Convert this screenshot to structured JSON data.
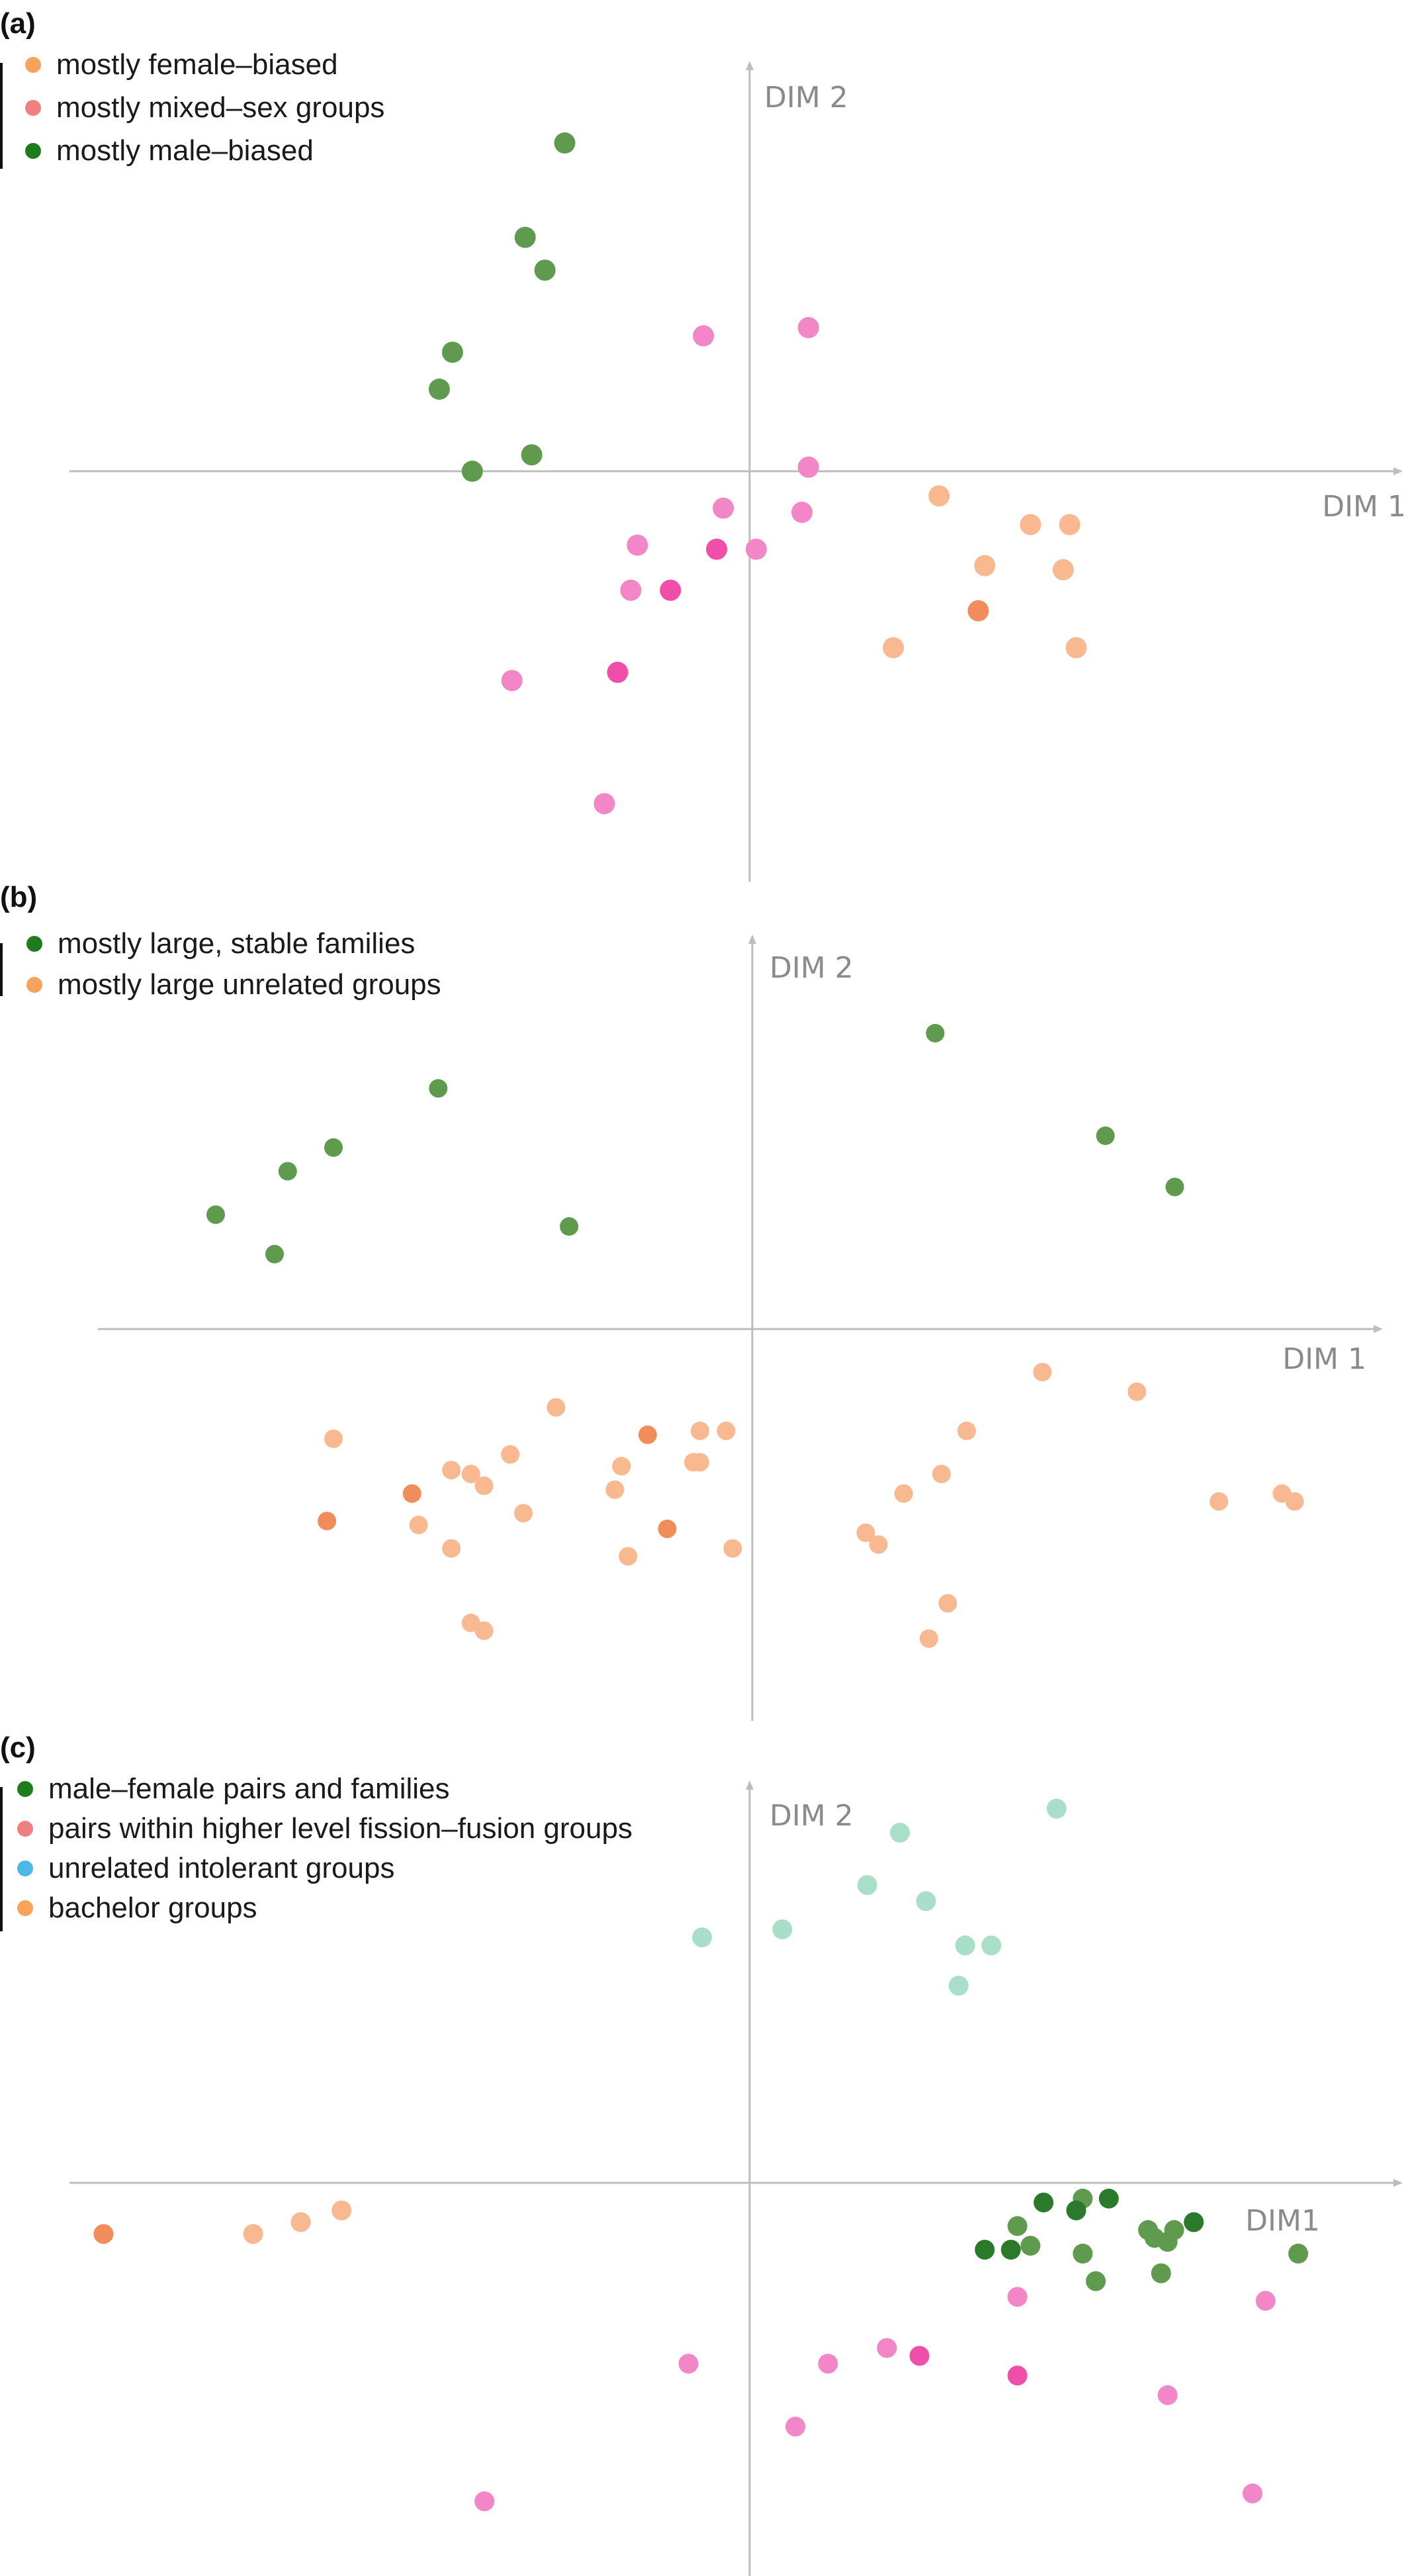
{
  "chart_data": [
    {
      "type": "scatter",
      "panel_label": "(a)",
      "xlabel": "DIM 1",
      "ylabel": "DIM 2",
      "legend_placement": "top-left",
      "grid": false,
      "xlim": [
        -1.03,
        1.0
      ],
      "ylim": [
        -1.0,
        1.0
      ],
      "legend": [
        {
          "label": "mostly female–biased",
          "color": "#f7a35c"
        },
        {
          "label": "mostly mixed–sex groups",
          "color": "#f08080"
        },
        {
          "label": "mostly male–biased",
          "color": "#1e7b1e"
        }
      ],
      "series": [
        {
          "color": "#5f9a4f",
          "points": [
            [
              -0.28,
              0.8
            ],
            [
              -0.34,
              0.57
            ],
            [
              -0.31,
              0.49
            ],
            [
              -0.45,
              0.29
            ],
            [
              -0.47,
              0.2
            ],
            [
              -0.33,
              0.04
            ],
            [
              -0.42,
              0.0
            ]
          ]
        },
        {
          "color": "#f386c7",
          "points": [
            [
              -0.07,
              0.33
            ],
            [
              0.09,
              0.35
            ],
            [
              0.09,
              0.01
            ],
            [
              -0.04,
              -0.09
            ],
            [
              0.08,
              -0.1
            ],
            [
              -0.17,
              -0.18
            ],
            [
              0.01,
              -0.19
            ],
            [
              -0.18,
              -0.29
            ],
            [
              -0.36,
              -0.51
            ],
            [
              -0.22,
              -0.81
            ]
          ]
        },
        {
          "color": "#ef4fa8",
          "points": [
            [
              -0.05,
              -0.19
            ],
            [
              -0.12,
              -0.29
            ],
            [
              -0.2,
              -0.49
            ]
          ]
        },
        {
          "color": "#f8b990",
          "points": [
            [
              0.29,
              -0.06
            ],
            [
              0.43,
              -0.13
            ],
            [
              0.49,
              -0.13
            ],
            [
              0.36,
              -0.23
            ],
            [
              0.48,
              -0.24
            ],
            [
              0.22,
              -0.43
            ],
            [
              0.5,
              -0.43
            ]
          ]
        },
        {
          "color": "#f18d5a",
          "points": [
            [
              0.35,
              -0.34
            ]
          ]
        }
      ]
    },
    {
      "type": "scatter",
      "panel_label": "(b)",
      "xlabel": "DIM 1",
      "ylabel": "DIM 2",
      "legend_placement": "top-left",
      "grid": false,
      "xlim": [
        -1.0,
        1.0
      ],
      "ylim": [
        -1.0,
        1.0
      ],
      "legend": [
        {
          "label": "mostly large, stable families",
          "color": "#1e7b1e"
        },
        {
          "label": "mostly large unrelated groups",
          "color": "#f7a35c"
        }
      ],
      "series": [
        {
          "color": "#5f9a4f",
          "points": [
            [
              0.29,
              0.75
            ],
            [
              -0.48,
              0.61
            ],
            [
              0.56,
              0.49
            ],
            [
              -0.64,
              0.46
            ],
            [
              -0.71,
              0.4
            ],
            [
              0.67,
              0.36
            ],
            [
              -0.28,
              0.26
            ],
            [
              -0.82,
              0.29
            ],
            [
              -0.73,
              0.19
            ]
          ]
        },
        {
          "color": "#f8b990",
          "points": [
            [
              0.46,
              -0.11
            ],
            [
              0.61,
              -0.16
            ],
            [
              -0.3,
              -0.2
            ],
            [
              -0.08,
              -0.26
            ],
            [
              -0.04,
              -0.26
            ],
            [
              0.34,
              -0.26
            ],
            [
              -0.64,
              -0.28
            ],
            [
              -0.37,
              -0.32
            ],
            [
              -0.09,
              -0.34
            ],
            [
              -0.08,
              -0.34
            ],
            [
              -0.2,
              -0.35
            ],
            [
              -0.46,
              -0.36
            ],
            [
              -0.43,
              -0.37
            ],
            [
              0.3,
              -0.37
            ],
            [
              -0.41,
              -0.4
            ],
            [
              -0.21,
              -0.41
            ],
            [
              0.24,
              -0.42
            ],
            [
              0.84,
              -0.42
            ],
            [
              0.86,
              -0.44
            ],
            [
              0.74,
              -0.44
            ],
            [
              -0.35,
              -0.47
            ],
            [
              -0.51,
              -0.5
            ],
            [
              0.18,
              -0.52
            ],
            [
              0.2,
              -0.55
            ],
            [
              -0.46,
              -0.56
            ],
            [
              -0.19,
              -0.58
            ],
            [
              -0.03,
              -0.56
            ],
            [
              0.31,
              -0.7
            ],
            [
              -0.43,
              -0.75
            ],
            [
              -0.41,
              -0.77
            ],
            [
              0.28,
              -0.79
            ]
          ]
        },
        {
          "color": "#f18d5a",
          "points": [
            [
              -0.16,
              -0.27
            ],
            [
              -0.52,
              -0.42
            ],
            [
              -0.65,
              -0.49
            ],
            [
              -0.13,
              -0.51
            ]
          ]
        }
      ]
    },
    {
      "type": "scatter",
      "panel_label": "(c)",
      "xlabel": "DIM1",
      "ylabel": "DIM 2",
      "legend_placement": "top-left",
      "grid": false,
      "xlim": [
        -1.0,
        1.0
      ],
      "ylim": [
        -1.0,
        1.0
      ],
      "legend": [
        {
          "label": "male–female pairs and families",
          "color": "#1e7b1e"
        },
        {
          "label": "pairs within higher level fission–fusion groups",
          "color": "#f08080"
        },
        {
          "label": "unrelated intolerant groups",
          "color": "#4db8e8"
        },
        {
          "label": "bachelor groups",
          "color": "#f7a35c"
        }
      ],
      "series": [
        {
          "color": "#a9dfc9",
          "points": [
            [
              0.47,
              0.93
            ],
            [
              0.23,
              0.87
            ],
            [
              0.18,
              0.74
            ],
            [
              0.27,
              0.7
            ],
            [
              0.05,
              0.63
            ],
            [
              0.33,
              0.59
            ],
            [
              0.37,
              0.59
            ],
            [
              -0.07,
              0.61
            ],
            [
              0.32,
              0.49
            ]
          ]
        },
        {
          "color": "#5f9a4f",
          "points": [
            [
              0.51,
              -0.04
            ],
            [
              0.41,
              -0.11
            ],
            [
              0.43,
              -0.16
            ],
            [
              0.61,
              -0.12
            ],
            [
              0.51,
              -0.18
            ],
            [
              0.62,
              -0.14
            ],
            [
              0.65,
              -0.12
            ],
            [
              0.64,
              -0.15
            ],
            [
              0.84,
              -0.18
            ],
            [
              0.63,
              -0.23
            ],
            [
              0.53,
              -0.25
            ]
          ]
        },
        {
          "color": "#2b7a2b",
          "points": [
            [
              0.45,
              -0.05
            ],
            [
              0.55,
              -0.04
            ],
            [
              0.5,
              -0.07
            ],
            [
              0.68,
              -0.1
            ],
            [
              0.36,
              -0.17
            ],
            [
              0.4,
              -0.17
            ]
          ]
        },
        {
          "color": "#f386c7",
          "points": [
            [
              0.41,
              -0.29
            ],
            [
              0.79,
              -0.3
            ],
            [
              0.21,
              -0.42
            ],
            [
              0.12,
              -0.46
            ],
            [
              -0.09,
              -0.46
            ],
            [
              0.64,
              -0.54
            ],
            [
              0.07,
              -0.62
            ],
            [
              -0.39,
              -0.81
            ],
            [
              0.77,
              -0.79
            ]
          ]
        },
        {
          "color": "#ef4fa8",
          "points": [
            [
              0.26,
              -0.44
            ],
            [
              0.41,
              -0.49
            ]
          ]
        },
        {
          "color": "#f8b990",
          "points": [
            [
              -0.6,
              -0.07
            ],
            [
              -0.66,
              -0.1
            ],
            [
              -0.73,
              -0.13
            ]
          ]
        },
        {
          "color": "#f18d5a",
          "points": [
            [
              -0.95,
              -0.13
            ]
          ]
        }
      ]
    }
  ]
}
